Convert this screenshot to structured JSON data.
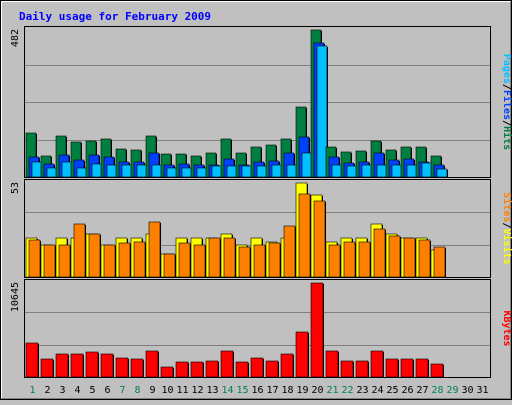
{
  "chart_data": {
    "type": "bar",
    "title": "Daily usage for February 2009",
    "days": [
      "1",
      "2",
      "3",
      "4",
      "5",
      "6",
      "7",
      "8",
      "9",
      "10",
      "11",
      "12",
      "13",
      "14",
      "15",
      "16",
      "17",
      "18",
      "19",
      "20",
      "21",
      "22",
      "23",
      "24",
      "25",
      "26",
      "27",
      "28",
      "29",
      "30",
      "31"
    ],
    "weekend_days": [
      "1",
      "7",
      "8",
      "14",
      "15",
      "21",
      "22",
      "28",
      "29"
    ],
    "data_days": 28,
    "colors": {
      "background": "#c0c0c0",
      "plot_bg": "#c0c0c0",
      "title": "#0000ff",
      "hits": "#008040",
      "files": "#0040ff",
      "pages": "#00c0ff",
      "visits": "#ffff00",
      "sites": "#ff8000",
      "kbytes": "#ff0000",
      "weekday_label": "#000000",
      "weekend_label": "#00805c"
    },
    "panels": [
      {
        "id": "requests",
        "max_label": "482",
        "ymax": 482,
        "ylabel_parts": [
          {
            "text": "Pages",
            "color": "#00c0ff"
          },
          {
            "text": "/",
            "color": "#000000"
          },
          {
            "text": "Files",
            "color": "#0040ff"
          },
          {
            "text": "/",
            "color": "#000000"
          },
          {
            "text": "Hits",
            "color": "#008040"
          }
        ],
        "series": [
          {
            "name": "Hits",
            "color": "#008040",
            "values": [
              145,
              68,
              135,
              115,
              118,
              125,
              92,
              90,
              135,
              75,
              75,
              70,
              80,
              125,
              78,
              100,
              105,
              125,
              228,
              482,
              100,
              82,
              85,
              118,
              90,
              100,
              98,
              70
            ]
          },
          {
            "name": "Files",
            "color": "#0040ff",
            "values": [
              65,
              42,
              72,
              55,
              72,
              65,
              50,
              50,
              80,
              40,
              42,
              40,
              40,
              58,
              40,
              50,
              52,
              80,
              132,
              440,
              65,
              45,
              50,
              78,
              55,
              60,
              48,
              38
            ]
          },
          {
            "name": "Pages",
            "color": "#00c0ff",
            "values": [
              50,
              30,
              50,
              30,
              42,
              40,
              40,
              40,
              40,
              30,
              30,
              30,
              35,
              35,
              35,
              35,
              40,
              40,
              80,
              430,
              40,
              35,
              40,
              40,
              40,
              40,
              45,
              25
            ]
          }
        ]
      },
      {
        "id": "visitors",
        "max_label": "53",
        "ymax": 53,
        "ylabel_parts": [
          {
            "text": "Sites",
            "color": "#ff8000"
          },
          {
            "text": "/",
            "color": "#000000"
          },
          {
            "text": "Visits",
            "color": "#ffff00"
          }
        ],
        "series": [
          {
            "name": "Visits",
            "color": "#ffff00",
            "values": [
              22,
              18,
              22,
              22,
              24,
              18,
              22,
              22,
              24,
              13,
              22,
              22,
              22,
              24,
              18,
              22,
              20,
              22,
              53,
              46,
              20,
              22,
              22,
              30,
              24,
              22,
              22,
              15
            ]
          },
          {
            "name": "Sites",
            "color": "#ff8000",
            "values": [
              21,
              18,
              18,
              30,
              24,
              18,
              19,
              20,
              31,
              13,
              19,
              18,
              22,
              22,
              17,
              18,
              19,
              29,
              47,
              43,
              18,
              20,
              20,
              27,
              23,
              22,
              21,
              17
            ]
          }
        ]
      },
      {
        "id": "kbytes",
        "max_label": "10645",
        "ymax": 10645,
        "ylabel_parts": [
          {
            "text": "KBytes",
            "color": "#ff0000"
          }
        ],
        "series": [
          {
            "name": "KBytes",
            "color": "#ff0000",
            "values": [
              3900,
              2050,
              2550,
              2550,
              2850,
              2600,
              2100,
              2000,
              2900,
              1150,
              1650,
              1650,
              1800,
              2900,
              1700,
              2200,
              1800,
              2600,
              5100,
              10645,
              2950,
              1800,
              1800,
              2950,
              2050,
              2050,
              2050,
              1450
            ]
          }
        ]
      }
    ]
  }
}
